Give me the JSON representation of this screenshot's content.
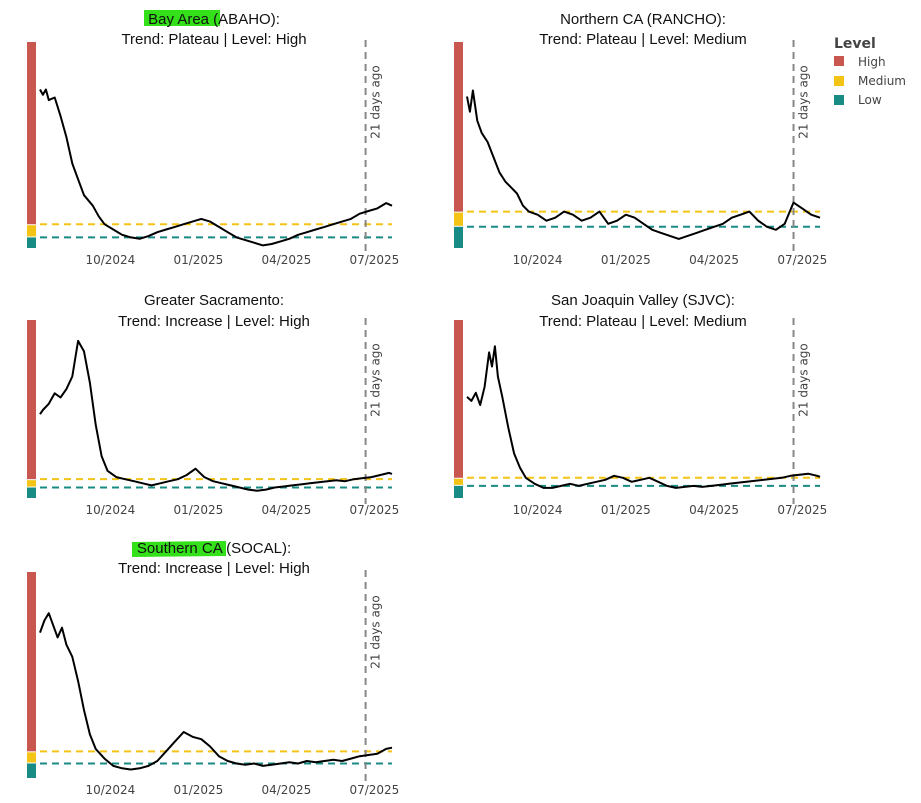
{
  "colors": {
    "high": "#c8574f",
    "medium": "#f3c316",
    "low": "#188b84",
    "highlight": "#33e01a",
    "line": "#000000",
    "marker": "#888888"
  },
  "legend": {
    "title": "Level",
    "items": [
      {
        "label": "High",
        "color": "#c8574f"
      },
      {
        "label": "Medium",
        "color": "#f3c316"
      },
      {
        "label": "Low",
        "color": "#188b84"
      }
    ]
  },
  "chart_data": [
    {
      "type": "line",
      "title_highlight": "Bay Area",
      "title_rest": " (ABAHO):",
      "title_line2": "Trend: Plateau  | Level: High",
      "marker_label": "21 days ago",
      "xticks": [
        "10/2024",
        "01/2025",
        "04/2025",
        "07/2025"
      ],
      "xtick_pos": [
        2.4,
        5.4,
        8.4,
        11.4
      ],
      "x_marker": 11.1,
      "x_range": [
        0,
        12.0
      ],
      "medium_threshold": 0.09,
      "low_threshold": 0.04,
      "level_bands": [
        0.0,
        0.04,
        0.09,
        0.72
      ],
      "ylim": [
        0.0,
        0.78
      ],
      "series": [
        [
          0.0,
          0.6
        ],
        [
          0.1,
          0.58
        ],
        [
          0.2,
          0.6
        ],
        [
          0.3,
          0.56
        ],
        [
          0.5,
          0.57
        ],
        [
          0.7,
          0.5
        ],
        [
          0.9,
          0.42
        ],
        [
          1.1,
          0.32
        ],
        [
          1.3,
          0.26
        ],
        [
          1.5,
          0.2
        ],
        [
          1.8,
          0.16
        ],
        [
          2.0,
          0.12
        ],
        [
          2.2,
          0.09
        ],
        [
          2.5,
          0.07
        ],
        [
          2.8,
          0.05
        ],
        [
          3.1,
          0.04
        ],
        [
          3.4,
          0.035
        ],
        [
          3.7,
          0.045
        ],
        [
          4.0,
          0.06
        ],
        [
          4.3,
          0.07
        ],
        [
          4.6,
          0.08
        ],
        [
          4.9,
          0.09
        ],
        [
          5.2,
          0.1
        ],
        [
          5.5,
          0.11
        ],
        [
          5.8,
          0.1
        ],
        [
          6.1,
          0.08
        ],
        [
          6.4,
          0.06
        ],
        [
          6.7,
          0.04
        ],
        [
          7.0,
          0.03
        ],
        [
          7.3,
          0.02
        ],
        [
          7.6,
          0.01
        ],
        [
          7.9,
          0.015
        ],
        [
          8.2,
          0.025
        ],
        [
          8.5,
          0.035
        ],
        [
          8.8,
          0.05
        ],
        [
          9.1,
          0.06
        ],
        [
          9.4,
          0.07
        ],
        [
          9.7,
          0.08
        ],
        [
          10.0,
          0.09
        ],
        [
          10.3,
          0.1
        ],
        [
          10.6,
          0.11
        ],
        [
          10.9,
          0.13
        ],
        [
          11.2,
          0.14
        ],
        [
          11.5,
          0.15
        ],
        [
          11.8,
          0.17
        ],
        [
          12.0,
          0.16
        ]
      ]
    },
    {
      "type": "line",
      "title_highlight": "",
      "title_rest": "Northern CA (RANCHO):",
      "title_line2": "Trend: Plateau  | Level: Medium",
      "marker_label": "21 days ago",
      "xticks": [
        "10/2024",
        "01/2025",
        "04/2025",
        "07/2025"
      ],
      "xtick_pos": [
        2.4,
        5.4,
        8.4,
        11.4
      ],
      "x_marker": 11.1,
      "x_range": [
        0,
        12.0
      ],
      "medium_threshold": 0.12,
      "low_threshold": 0.07,
      "level_bands": [
        0.0,
        0.07,
        0.12,
        0.65
      ],
      "ylim": [
        0.0,
        0.68
      ],
      "series": [
        [
          0.0,
          0.5
        ],
        [
          0.1,
          0.45
        ],
        [
          0.2,
          0.52
        ],
        [
          0.35,
          0.42
        ],
        [
          0.5,
          0.38
        ],
        [
          0.7,
          0.35
        ],
        [
          0.9,
          0.3
        ],
        [
          1.1,
          0.25
        ],
        [
          1.3,
          0.22
        ],
        [
          1.5,
          0.2
        ],
        [
          1.7,
          0.18
        ],
        [
          1.9,
          0.14
        ],
        [
          2.1,
          0.12
        ],
        [
          2.4,
          0.11
        ],
        [
          2.7,
          0.09
        ],
        [
          3.0,
          0.1
        ],
        [
          3.3,
          0.12
        ],
        [
          3.6,
          0.11
        ],
        [
          3.9,
          0.09
        ],
        [
          4.2,
          0.1
        ],
        [
          4.5,
          0.12
        ],
        [
          4.8,
          0.08
        ],
        [
          5.1,
          0.09
        ],
        [
          5.4,
          0.11
        ],
        [
          5.7,
          0.1
        ],
        [
          6.0,
          0.08
        ],
        [
          6.3,
          0.06
        ],
        [
          6.6,
          0.05
        ],
        [
          6.9,
          0.04
        ],
        [
          7.2,
          0.03
        ],
        [
          7.5,
          0.04
        ],
        [
          7.8,
          0.05
        ],
        [
          8.1,
          0.06
        ],
        [
          8.4,
          0.07
        ],
        [
          8.7,
          0.08
        ],
        [
          9.0,
          0.1
        ],
        [
          9.3,
          0.11
        ],
        [
          9.6,
          0.12
        ],
        [
          9.9,
          0.09
        ],
        [
          10.2,
          0.07
        ],
        [
          10.5,
          0.06
        ],
        [
          10.8,
          0.08
        ],
        [
          11.1,
          0.15
        ],
        [
          11.4,
          0.13
        ],
        [
          11.7,
          0.11
        ],
        [
          12.0,
          0.1
        ]
      ]
    },
    {
      "type": "line",
      "title_highlight": "",
      "title_rest": "Greater Sacramento:",
      "title_line2": "Trend: Increase  | Level: High",
      "marker_label": "21 days ago",
      "xticks": [
        "10/2024",
        "01/2025",
        "04/2025",
        "07/2025"
      ],
      "xtick_pos": [
        2.4,
        5.4,
        8.4,
        11.4
      ],
      "x_marker": 11.1,
      "x_range": [
        0,
        12.0
      ],
      "medium_threshold": 0.09,
      "low_threshold": 0.05,
      "level_bands": [
        0.0,
        0.05,
        0.09,
        0.8
      ],
      "ylim": [
        0.0,
        0.85
      ],
      "series": [
        [
          0.0,
          0.4
        ],
        [
          0.1,
          0.42
        ],
        [
          0.3,
          0.45
        ],
        [
          0.5,
          0.5
        ],
        [
          0.7,
          0.48
        ],
        [
          0.9,
          0.52
        ],
        [
          1.1,
          0.58
        ],
        [
          1.3,
          0.75
        ],
        [
          1.5,
          0.7
        ],
        [
          1.7,
          0.55
        ],
        [
          1.9,
          0.35
        ],
        [
          2.1,
          0.2
        ],
        [
          2.3,
          0.13
        ],
        [
          2.6,
          0.1
        ],
        [
          2.9,
          0.09
        ],
        [
          3.2,
          0.08
        ],
        [
          3.5,
          0.07
        ],
        [
          3.8,
          0.06
        ],
        [
          4.1,
          0.07
        ],
        [
          4.4,
          0.08
        ],
        [
          4.7,
          0.09
        ],
        [
          5.0,
          0.11
        ],
        [
          5.3,
          0.14
        ],
        [
          5.6,
          0.1
        ],
        [
          5.9,
          0.08
        ],
        [
          6.2,
          0.07
        ],
        [
          6.5,
          0.06
        ],
        [
          6.8,
          0.05
        ],
        [
          7.1,
          0.04
        ],
        [
          7.4,
          0.035
        ],
        [
          7.7,
          0.04
        ],
        [
          8.0,
          0.05
        ],
        [
          8.3,
          0.055
        ],
        [
          8.6,
          0.06
        ],
        [
          8.9,
          0.065
        ],
        [
          9.2,
          0.07
        ],
        [
          9.5,
          0.075
        ],
        [
          9.8,
          0.08
        ],
        [
          10.1,
          0.085
        ],
        [
          10.4,
          0.08
        ],
        [
          10.7,
          0.09
        ],
        [
          11.0,
          0.095
        ],
        [
          11.3,
          0.1
        ],
        [
          11.6,
          0.11
        ],
        [
          11.9,
          0.12
        ],
        [
          12.0,
          0.115
        ]
      ]
    },
    {
      "type": "line",
      "title_highlight": "",
      "title_rest": "San Joaquin Valley (SJVC):",
      "title_line2": "Trend: Plateau  | Level: Medium",
      "marker_label": "21 days ago",
      "xticks": [
        "10/2024",
        "01/2025",
        "04/2025",
        "07/2025"
      ],
      "xtick_pos": [
        2.4,
        5.4,
        8.4,
        11.4
      ],
      "x_marker": 11.1,
      "x_range": [
        0,
        12.0
      ],
      "medium_threshold": 0.1,
      "low_threshold": 0.06,
      "level_bands": [
        0.0,
        0.06,
        0.1,
        0.85
      ],
      "ylim": [
        0.0,
        0.88
      ],
      "series": [
        [
          0.0,
          0.5
        ],
        [
          0.15,
          0.48
        ],
        [
          0.3,
          0.52
        ],
        [
          0.45,
          0.46
        ],
        [
          0.6,
          0.55
        ],
        [
          0.75,
          0.72
        ],
        [
          0.85,
          0.65
        ],
        [
          0.95,
          0.75
        ],
        [
          1.05,
          0.6
        ],
        [
          1.2,
          0.5
        ],
        [
          1.4,
          0.35
        ],
        [
          1.6,
          0.22
        ],
        [
          1.8,
          0.15
        ],
        [
          2.0,
          0.1
        ],
        [
          2.3,
          0.07
        ],
        [
          2.6,
          0.05
        ],
        [
          2.9,
          0.05
        ],
        [
          3.2,
          0.06
        ],
        [
          3.5,
          0.07
        ],
        [
          3.8,
          0.06
        ],
        [
          4.1,
          0.07
        ],
        [
          4.4,
          0.08
        ],
        [
          4.7,
          0.09
        ],
        [
          5.0,
          0.11
        ],
        [
          5.3,
          0.1
        ],
        [
          5.6,
          0.08
        ],
        [
          5.9,
          0.09
        ],
        [
          6.2,
          0.1
        ],
        [
          6.5,
          0.08
        ],
        [
          6.8,
          0.06
        ],
        [
          7.1,
          0.05
        ],
        [
          7.4,
          0.055
        ],
        [
          7.7,
          0.06
        ],
        [
          8.0,
          0.055
        ],
        [
          8.3,
          0.06
        ],
        [
          8.6,
          0.065
        ],
        [
          8.9,
          0.07
        ],
        [
          9.2,
          0.075
        ],
        [
          9.5,
          0.08
        ],
        [
          9.8,
          0.085
        ],
        [
          10.1,
          0.09
        ],
        [
          10.4,
          0.095
        ],
        [
          10.7,
          0.1
        ],
        [
          11.0,
          0.11
        ],
        [
          11.3,
          0.115
        ],
        [
          11.6,
          0.12
        ],
        [
          11.9,
          0.11
        ],
        [
          12.0,
          0.105
        ]
      ]
    },
    {
      "type": "line",
      "title_highlight": "Southern CA",
      "title_rest": " (SOCAL):",
      "title_line2": "Trend: Increase  | Level: High",
      "marker_label": "21 days ago",
      "xticks": [
        "10/2024",
        "01/2025",
        "04/2025",
        "07/2025"
      ],
      "xtick_pos": [
        2.4,
        5.4,
        8.4,
        11.4
      ],
      "x_marker": 11.1,
      "x_range": [
        0,
        12.0
      ],
      "medium_threshold": 0.11,
      "low_threshold": 0.06,
      "level_bands": [
        0.0,
        0.06,
        0.11,
        0.8
      ],
      "ylim": [
        0.0,
        0.85
      ],
      "series": [
        [
          0.0,
          0.6
        ],
        [
          0.15,
          0.65
        ],
        [
          0.3,
          0.68
        ],
        [
          0.45,
          0.63
        ],
        [
          0.6,
          0.58
        ],
        [
          0.75,
          0.62
        ],
        [
          0.9,
          0.55
        ],
        [
          1.1,
          0.5
        ],
        [
          1.3,
          0.4
        ],
        [
          1.5,
          0.28
        ],
        [
          1.7,
          0.18
        ],
        [
          1.9,
          0.12
        ],
        [
          2.2,
          0.08
        ],
        [
          2.5,
          0.05
        ],
        [
          2.8,
          0.04
        ],
        [
          3.1,
          0.035
        ],
        [
          3.4,
          0.04
        ],
        [
          3.7,
          0.05
        ],
        [
          4.0,
          0.07
        ],
        [
          4.3,
          0.11
        ],
        [
          4.6,
          0.15
        ],
        [
          4.9,
          0.19
        ],
        [
          5.2,
          0.17
        ],
        [
          5.5,
          0.16
        ],
        [
          5.8,
          0.13
        ],
        [
          6.1,
          0.09
        ],
        [
          6.4,
          0.07
        ],
        [
          6.7,
          0.06
        ],
        [
          7.0,
          0.055
        ],
        [
          7.3,
          0.06
        ],
        [
          7.6,
          0.05
        ],
        [
          7.9,
          0.055
        ],
        [
          8.2,
          0.06
        ],
        [
          8.5,
          0.065
        ],
        [
          8.8,
          0.06
        ],
        [
          9.1,
          0.07
        ],
        [
          9.4,
          0.065
        ],
        [
          9.7,
          0.07
        ],
        [
          10.0,
          0.075
        ],
        [
          10.3,
          0.07
        ],
        [
          10.6,
          0.08
        ],
        [
          10.9,
          0.09
        ],
        [
          11.2,
          0.095
        ],
        [
          11.5,
          0.1
        ],
        [
          11.8,
          0.12
        ],
        [
          12.0,
          0.125
        ]
      ]
    }
  ]
}
